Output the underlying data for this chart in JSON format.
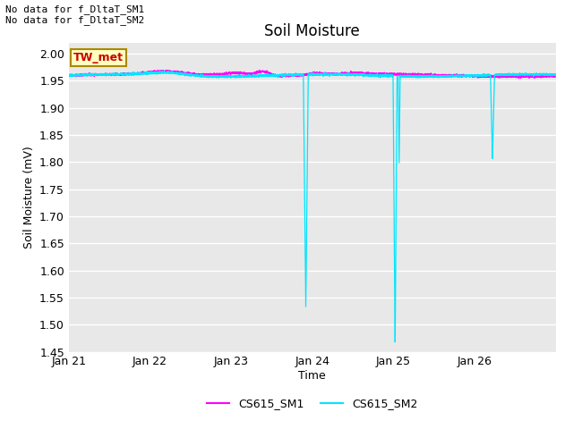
{
  "title": "Soil Moisture",
  "xlabel": "Time",
  "ylabel": "Soil Moisture (mV)",
  "ylim": [
    1.45,
    2.02
  ],
  "yticks": [
    1.45,
    1.5,
    1.55,
    1.6,
    1.65,
    1.7,
    1.75,
    1.8,
    1.85,
    1.9,
    1.95,
    2.0
  ],
  "xtick_labels": [
    "Jan 21",
    "Jan 22",
    "Jan 23",
    "Jan 24",
    "Jan 25",
    "Jan 26"
  ],
  "bg_color": "#e8e8e8",
  "fig_color": "#ffffff",
  "sm1_color": "#ff00ff",
  "sm2_color": "#00e5ff",
  "annotation_text": "No data for f_DltaT_SM1\nNo data for f_DltaT_SM2",
  "legend_box_label": "TW_met",
  "legend_box_facecolor": "#ffffc0",
  "legend_box_edgecolor": "#aa8800",
  "legend_box_textcolor": "#cc0000"
}
